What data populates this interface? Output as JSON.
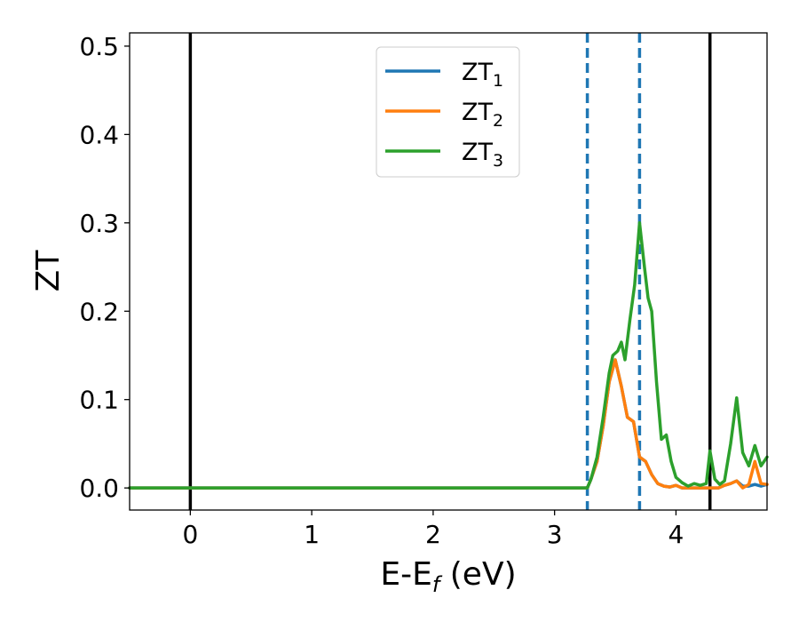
{
  "chart_data": {
    "type": "line",
    "xlabel": {
      "main": "E-E",
      "sub": "f",
      "unit": " (eV)"
    },
    "ylabel": "ZT",
    "xlim": [
      -0.5,
      4.75
    ],
    "ylim": [
      -0.025,
      0.515
    ],
    "xticks": [
      0,
      1,
      2,
      3,
      4
    ],
    "xtick_labels": [
      "0",
      "1",
      "2",
      "3",
      "4"
    ],
    "yticks": [
      0.0,
      0.1,
      0.2,
      0.3,
      0.4,
      0.5
    ],
    "ytick_labels": [
      "0.0",
      "0.1",
      "0.2",
      "0.3",
      "0.4",
      "0.5"
    ],
    "grid": false,
    "legend_position": "top-center",
    "vertical_lines": [
      {
        "x": 0.0,
        "style": "solid",
        "color": "#000000"
      },
      {
        "x": 4.28,
        "style": "solid",
        "color": "#000000"
      },
      {
        "x": 3.27,
        "style": "dashed",
        "color": "#1f77b4"
      },
      {
        "x": 3.7,
        "style": "dashed",
        "color": "#1f77b4"
      }
    ],
    "series": [
      {
        "name": "ZT",
        "name_sub": "1",
        "color": "#1f77b4",
        "x": [
          -0.5,
          3.27,
          3.3,
          3.35,
          3.4,
          3.45,
          3.5,
          3.55,
          3.6,
          3.65,
          3.7,
          3.75,
          3.8,
          3.85,
          3.9,
          3.95,
          4.0,
          4.05,
          4.1,
          4.15,
          4.2,
          4.25,
          4.3,
          4.35,
          4.4,
          4.45,
          4.5,
          4.55,
          4.6,
          4.65,
          4.7,
          4.75
        ],
        "y": [
          0.0,
          0.0,
          0.01,
          0.03,
          0.07,
          0.12,
          0.145,
          0.115,
          0.08,
          0.075,
          0.035,
          0.03,
          0.015,
          0.005,
          0.002,
          0.001,
          0.003,
          0.0,
          0.0,
          0.0,
          0.0,
          0.0,
          0.0,
          0.0,
          0.003,
          0.005,
          0.008,
          0.002,
          0.002,
          0.004,
          0.002,
          0.004
        ]
      },
      {
        "name": "ZT",
        "name_sub": "2",
        "color": "#ff7f0e",
        "x": [
          -0.5,
          3.27,
          3.3,
          3.35,
          3.4,
          3.45,
          3.5,
          3.55,
          3.6,
          3.65,
          3.7,
          3.75,
          3.8,
          3.85,
          3.9,
          3.95,
          4.0,
          4.05,
          4.1,
          4.15,
          4.2,
          4.25,
          4.3,
          4.35,
          4.4,
          4.45,
          4.5,
          4.55,
          4.6,
          4.65,
          4.7,
          4.75
        ],
        "y": [
          0.0,
          0.0,
          0.01,
          0.03,
          0.07,
          0.12,
          0.145,
          0.115,
          0.08,
          0.075,
          0.035,
          0.03,
          0.015,
          0.005,
          0.002,
          0.001,
          0.003,
          0.0,
          0.0,
          0.0,
          0.0,
          0.0,
          0.0,
          0.0,
          0.003,
          0.005,
          0.008,
          0.0,
          0.004,
          0.03,
          0.005,
          0.004
        ]
      },
      {
        "name": "ZT",
        "name_sub": "3",
        "color": "#2ca02c",
        "x": [
          -0.5,
          3.27,
          3.3,
          3.35,
          3.4,
          3.45,
          3.48,
          3.52,
          3.55,
          3.58,
          3.62,
          3.66,
          3.7,
          3.74,
          3.77,
          3.8,
          3.84,
          3.88,
          3.92,
          3.96,
          4.0,
          4.05,
          4.1,
          4.15,
          4.2,
          4.25,
          4.28,
          4.32,
          4.36,
          4.4,
          4.45,
          4.5,
          4.55,
          4.6,
          4.65,
          4.7,
          4.75
        ],
        "y": [
          0.0,
          0.0,
          0.01,
          0.035,
          0.08,
          0.13,
          0.15,
          0.155,
          0.165,
          0.145,
          0.19,
          0.23,
          0.3,
          0.25,
          0.215,
          0.2,
          0.12,
          0.055,
          0.06,
          0.03,
          0.012,
          0.006,
          0.002,
          0.005,
          0.003,
          0.005,
          0.042,
          0.01,
          0.004,
          0.008,
          0.05,
          0.102,
          0.04,
          0.025,
          0.048,
          0.025,
          0.035
        ]
      }
    ]
  }
}
